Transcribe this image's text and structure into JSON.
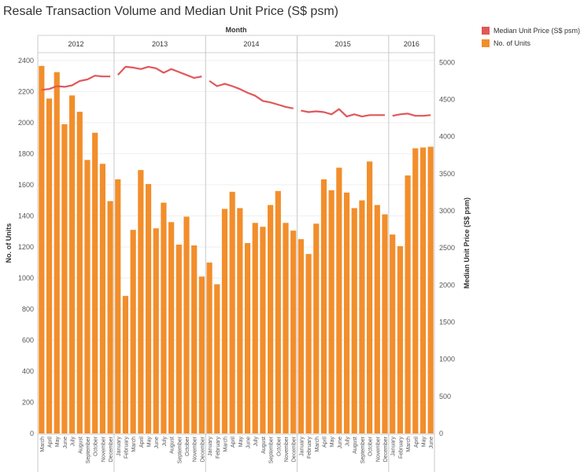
{
  "chart_data": {
    "type": "bar",
    "title": "Resale Transaction Volume and Median Unit Price (S$ psm)",
    "column_header": "Month",
    "ylabel": "No. of Units",
    "y2label": "Median Unit Price (S$ psm)",
    "ylim": [
      0,
      2450
    ],
    "yticks": [
      0,
      200,
      400,
      600,
      800,
      1000,
      1200,
      1400,
      1600,
      1800,
      2000,
      2200,
      2400
    ],
    "y2lim": [
      0,
      5130
    ],
    "y2ticks": [
      0,
      500,
      1000,
      1500,
      2000,
      2500,
      3000,
      3500,
      4000,
      4500,
      5000
    ],
    "grid": true,
    "legend_position": "top-right",
    "colors": {
      "units": "#f28e2b",
      "price": "#e15759"
    },
    "legend": [
      {
        "label": "Median Unit Price (S$ psm)",
        "color": "#e15759"
      },
      {
        "label": "No. of Units",
        "color": "#f28e2b"
      }
    ],
    "years": [
      {
        "year": "2012",
        "months": [
          "March",
          "April",
          "May",
          "June",
          "July",
          "August",
          "September",
          "October",
          "November",
          "December"
        ],
        "units": [
          2365,
          2155,
          2325,
          1990,
          2175,
          2070,
          1760,
          1935,
          1735,
          1495
        ],
        "price": [
          4630,
          4640,
          4680,
          4670,
          4690,
          4750,
          4770,
          4820,
          4810,
          4810
        ]
      },
      {
        "year": "2013",
        "months": [
          "January",
          "February",
          "March",
          "April",
          "May",
          "June",
          "July",
          "August",
          "September",
          "October",
          "November",
          "December"
        ],
        "units": [
          1635,
          885,
          1310,
          1695,
          1605,
          1320,
          1485,
          1360,
          1215,
          1395,
          1210,
          1010
        ],
        "price": [
          4830,
          4940,
          4930,
          4910,
          4940,
          4920,
          4860,
          4910,
          4870,
          4830,
          4790,
          4810
        ]
      },
      {
        "year": "2014",
        "months": [
          "January",
          "February",
          "March",
          "April",
          "May",
          "June",
          "July",
          "August",
          "September",
          "October",
          "November",
          "December"
        ],
        "units": [
          1100,
          960,
          1445,
          1555,
          1450,
          1225,
          1355,
          1330,
          1470,
          1560,
          1355,
          1305
        ],
        "price": [
          4750,
          4680,
          4710,
          4680,
          4640,
          4590,
          4550,
          4480,
          4460,
          4430,
          4400,
          4380
        ]
      },
      {
        "year": "2015",
        "months": [
          "January",
          "February",
          "March",
          "April",
          "May",
          "June",
          "July",
          "August",
          "September",
          "October",
          "November",
          "December"
        ],
        "units": [
          1250,
          1155,
          1350,
          1635,
          1565,
          1710,
          1550,
          1450,
          1500,
          1750,
          1470,
          1410
        ],
        "price": [
          4350,
          4330,
          4340,
          4330,
          4300,
          4370,
          4270,
          4300,
          4270,
          4290,
          4290,
          4290
        ]
      },
      {
        "year": "2016",
        "months": [
          "January",
          "February",
          "March",
          "April",
          "May",
          "June"
        ],
        "units": [
          1280,
          1205,
          1660,
          1835,
          1840,
          1845
        ],
        "price": [
          4280,
          4300,
          4310,
          4280,
          4280,
          4290
        ]
      }
    ]
  }
}
